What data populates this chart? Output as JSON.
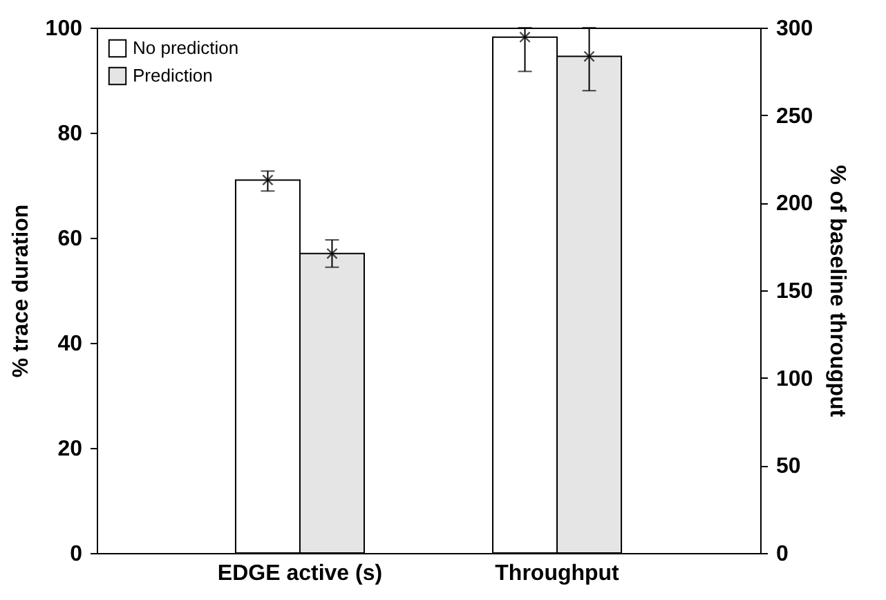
{
  "chart_data": {
    "type": "bar",
    "categories": [
      "EDGE active (s)",
      "Throughput"
    ],
    "ylabel": "% trace duration",
    "y2label": "% of baseline througput",
    "ylim": [
      0,
      100
    ],
    "yticks": [
      0,
      20,
      40,
      60,
      80,
      100
    ],
    "y2lim": [
      0,
      300
    ],
    "y2ticks": [
      0,
      50,
      100,
      150,
      200,
      250,
      300
    ],
    "legend": "top left",
    "marker": "cross",
    "grid": false,
    "series": [
      {
        "name": "No prediction",
        "color": "#ffffff",
        "values": [
          71,
          null
        ],
        "errors": [
          [
            68.9,
            72.7
          ],
          null
        ]
      },
      {
        "name": "Prediction",
        "color": "#e5e5e5",
        "values": [
          57,
          null
        ],
        "errors": [
          [
            54.4,
            59.6
          ],
          null
        ]
      },
      {
        "color": "#ffffff",
        "axis": "y2",
        "values": [
          null,
          294.6
        ],
        "errors": [
          null,
          [
            275,
            300
          ]
        ]
      },
      {
        "color": "#e5e5e5",
        "axis": "y2",
        "values": [
          null,
          283.6
        ],
        "errors": [
          null,
          [
            264,
            300
          ]
        ]
      },
      {
        "type": "scatter",
        "color": "#000000",
        "x": [
          "EDGE active (s)"
        ],
        "values": [
          71
        ]
      },
      {
        "type": "scatter",
        "color": "#000000",
        "x": [
          "EDGE active (s)"
        ],
        "values": [
          57
        ]
      },
      {
        "type": "scatter",
        "color": "#000000",
        "axis": "y2",
        "x": [
          "Throughput"
        ],
        "values": [
          294.6
        ]
      },
      {
        "type": "scatter",
        "color": "#000000",
        "axis": "y2",
        "x": [
          "Throughput"
        ],
        "values": [
          283.6
        ]
      }
    ]
  }
}
